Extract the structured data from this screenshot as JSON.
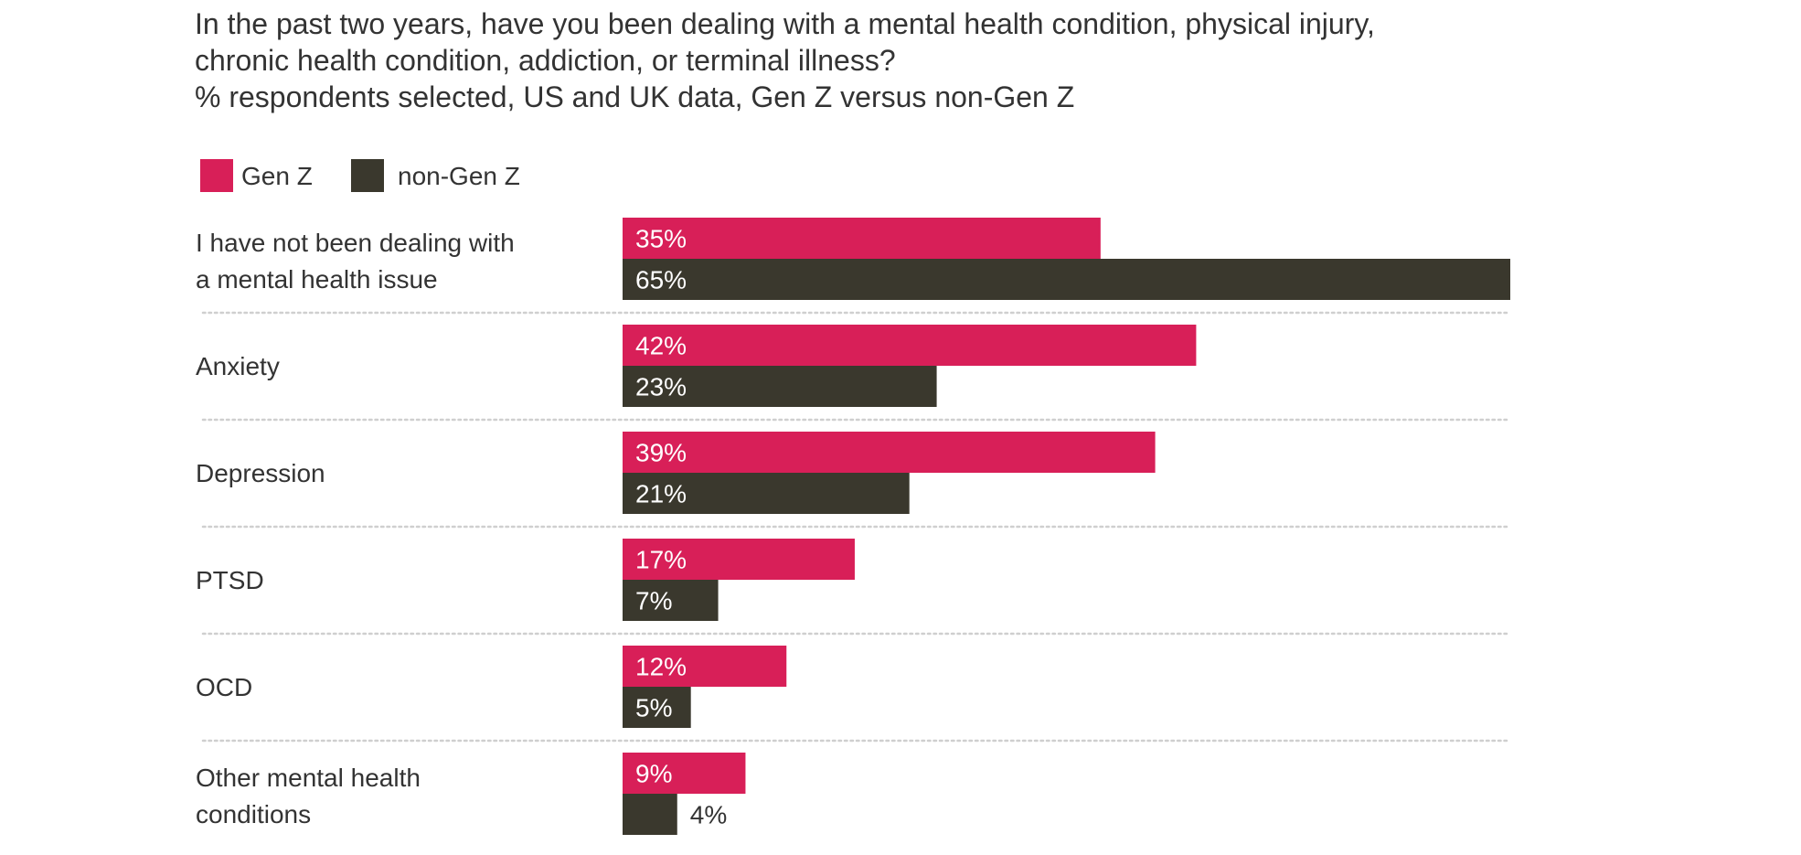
{
  "chart_data": {
    "type": "bar",
    "orientation": "horizontal",
    "title_lines": [
      "In the past two years, have you been dealing with a mental health condition, physical injury,",
      "chronic health condition, addiction, or terminal illness?",
      "% respondents selected, US and UK data, Gen Z versus non-Gen Z"
    ],
    "legend": [
      "Gen  Z",
      "non-Gen Z"
    ],
    "categories": [
      [
        "I have not been dealing with",
        "a mental health issue"
      ],
      [
        "Anxiety"
      ],
      [
        "Depression"
      ],
      [
        "PTSD"
      ],
      [
        "OCD"
      ],
      [
        "Other mental health",
        "conditions"
      ]
    ],
    "series": [
      {
        "name": "Gen  Z",
        "color": "#d81f58",
        "values": [
          35,
          42,
          39,
          17,
          12,
          9
        ],
        "labels": [
          "35%",
          "42%",
          "39%",
          "17%",
          "12%",
          "9%"
        ]
      },
      {
        "name": "non-Gen Z",
        "color": "#3a382d",
        "values": [
          65,
          23,
          21,
          7,
          5,
          4
        ],
        "labels": [
          "65%",
          "23%",
          "21%",
          "7%",
          "5%",
          "4%"
        ]
      }
    ],
    "xlim": [
      0,
      65
    ],
    "grid": false,
    "legend_position": "top-left",
    "separators": "dotted"
  }
}
